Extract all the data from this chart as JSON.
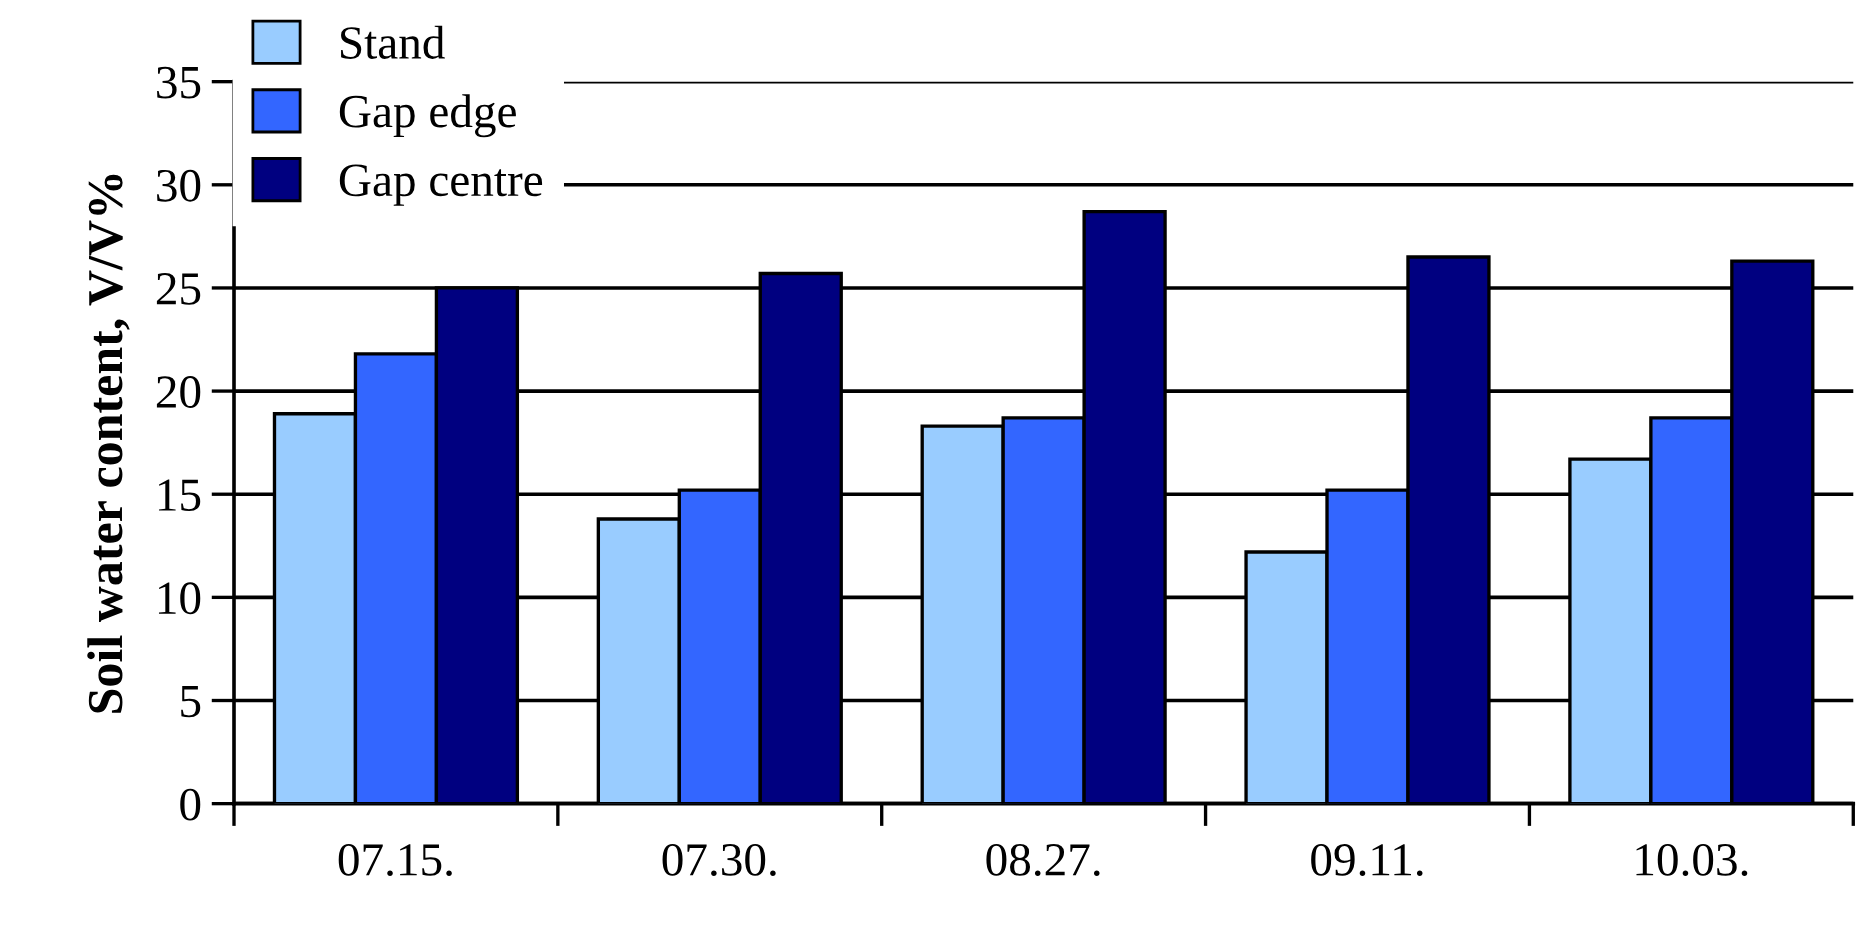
{
  "chart_data": {
    "type": "bar",
    "ylabel": "Soil water content, V/V%",
    "categories": [
      "07.15.",
      "07.30.",
      "08.27.",
      "09.11.",
      "10.03."
    ],
    "series": [
      {
        "name": "Stand",
        "color": "#99ccff",
        "values": [
          18.9,
          13.8,
          18.3,
          12.2,
          16.7
        ]
      },
      {
        "name": "Gap edge",
        "color": "#3366ff",
        "values": [
          21.8,
          15.2,
          18.7,
          15.2,
          18.7
        ]
      },
      {
        "name": "Gap centre",
        "color": "#000080",
        "values": [
          25,
          25.7,
          28.7,
          26.5,
          26.3
        ]
      }
    ],
    "ylim": [
      0,
      35
    ],
    "yticks": [
      0,
      5,
      10,
      15,
      20,
      25,
      30,
      35
    ],
    "grid": "y",
    "legend": "top left"
  }
}
